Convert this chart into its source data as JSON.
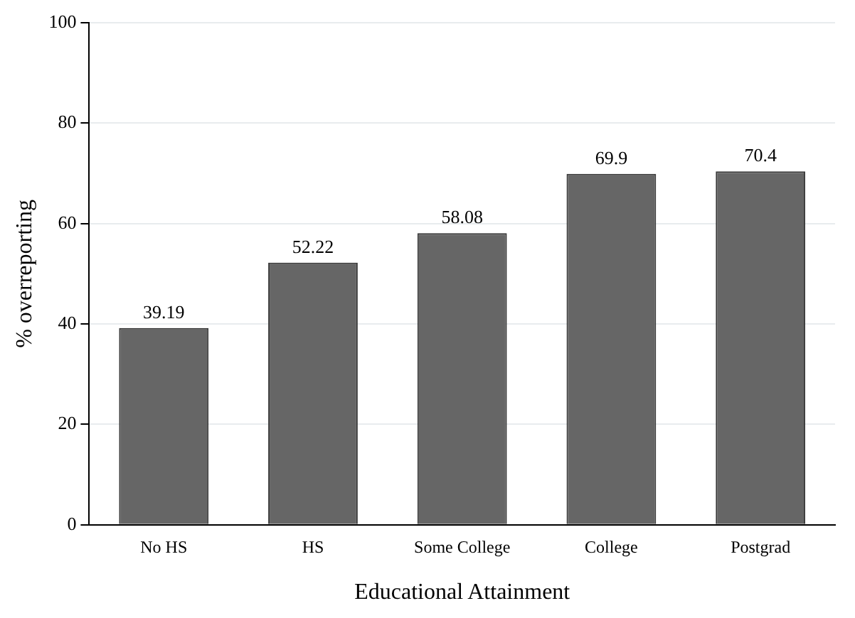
{
  "chart_data": {
    "type": "bar",
    "xlabel": "Educational Attainment",
    "ylabel": "% overreporting",
    "categories": [
      "No HS",
      "HS",
      "Some College",
      "College",
      "Postgrad"
    ],
    "values": [
      39.19,
      52.22,
      58.08,
      69.9,
      70.4
    ],
    "color": "#666666",
    "ylim": [
      0,
      100
    ],
    "yticks": [
      0,
      20,
      40,
      60,
      80,
      100
    ],
    "grid": "y",
    "data_labels": true
  }
}
